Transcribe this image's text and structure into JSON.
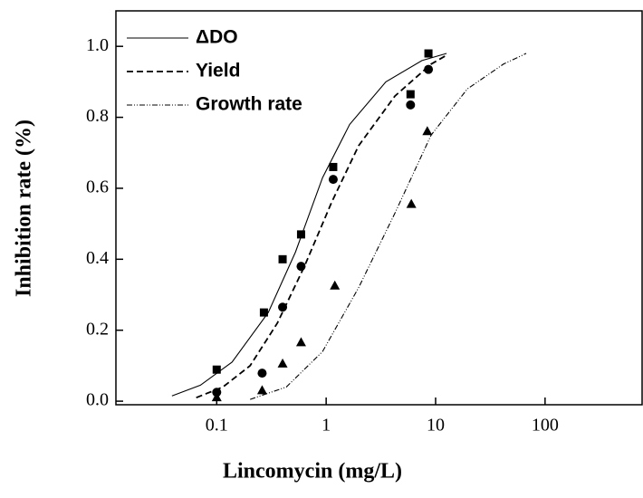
{
  "chart_data": {
    "type": "scatter",
    "log_x": true,
    "legend": "upper left",
    "xlabel": "Lincomycin (mg/L)",
    "ylabel": "Inhibition rate (%)",
    "xlim": [
      0.012,
      770
    ],
    "ylim": [
      -0.01,
      1.1
    ],
    "xticks": [
      0.1,
      1,
      10,
      100
    ],
    "yticks": [
      {
        "value": 0,
        "label": "0.0"
      },
      {
        "value": 0.2,
        "label": "0.2"
      },
      {
        "value": 0.4,
        "label": "0.4"
      },
      {
        "value": 0.6,
        "label": "0.6"
      },
      {
        "value": 0.8,
        "label": "0.8"
      },
      {
        "value": 1,
        "label": "1.0"
      }
    ],
    "series": [
      {
        "name": "ΔDO",
        "color": "#000000",
        "marker": "square",
        "dash": "solid",
        "x": [
          0.1,
          0.27,
          0.4,
          0.59,
          1.16,
          5.9,
          8.6
        ],
        "values": [
          0.089,
          0.25,
          0.4,
          0.47,
          0.66,
          0.865,
          0.98
        ],
        "fit_x": [
          0.039,
          0.071,
          0.138,
          0.296,
          0.524,
          0.927,
          1.64,
          3.51,
          7.5,
          12.6
        ],
        "fit_values": [
          0.015,
          0.045,
          0.11,
          0.25,
          0.42,
          0.63,
          0.78,
          0.9,
          0.96,
          0.98
        ]
      },
      {
        "name": "Yield",
        "color": "#000000",
        "marker": "circle",
        "dash": "dashed",
        "x": [
          0.1,
          0.26,
          0.4,
          0.59,
          1.16,
          5.9,
          8.6
        ],
        "values": [
          0.025,
          0.079,
          0.265,
          0.38,
          0.625,
          0.835,
          0.935
        ],
        "fit_x": [
          0.065,
          0.114,
          0.202,
          0.358,
          0.633,
          1.12,
          1.98,
          4.25,
          9.1,
          12.6
        ],
        "fit_values": [
          0.01,
          0.04,
          0.1,
          0.22,
          0.38,
          0.56,
          0.72,
          0.86,
          0.95,
          0.975
        ]
      },
      {
        "name": "Growth rate",
        "color": "#000000",
        "marker": "triangle",
        "dash": "dashdot",
        "x": [
          0.1,
          0.26,
          0.4,
          0.59,
          1.2,
          6.0,
          8.4
        ],
        "values": [
          0.01,
          0.03,
          0.105,
          0.165,
          0.325,
          0.555,
          0.76
        ],
        "fit_x": [
          0.202,
          0.433,
          0.927,
          1.98,
          4.25,
          9.1,
          19.5,
          41.7,
          67.2
        ],
        "fit_values": [
          0.005,
          0.04,
          0.14,
          0.32,
          0.53,
          0.75,
          0.88,
          0.95,
          0.98
        ]
      }
    ]
  }
}
